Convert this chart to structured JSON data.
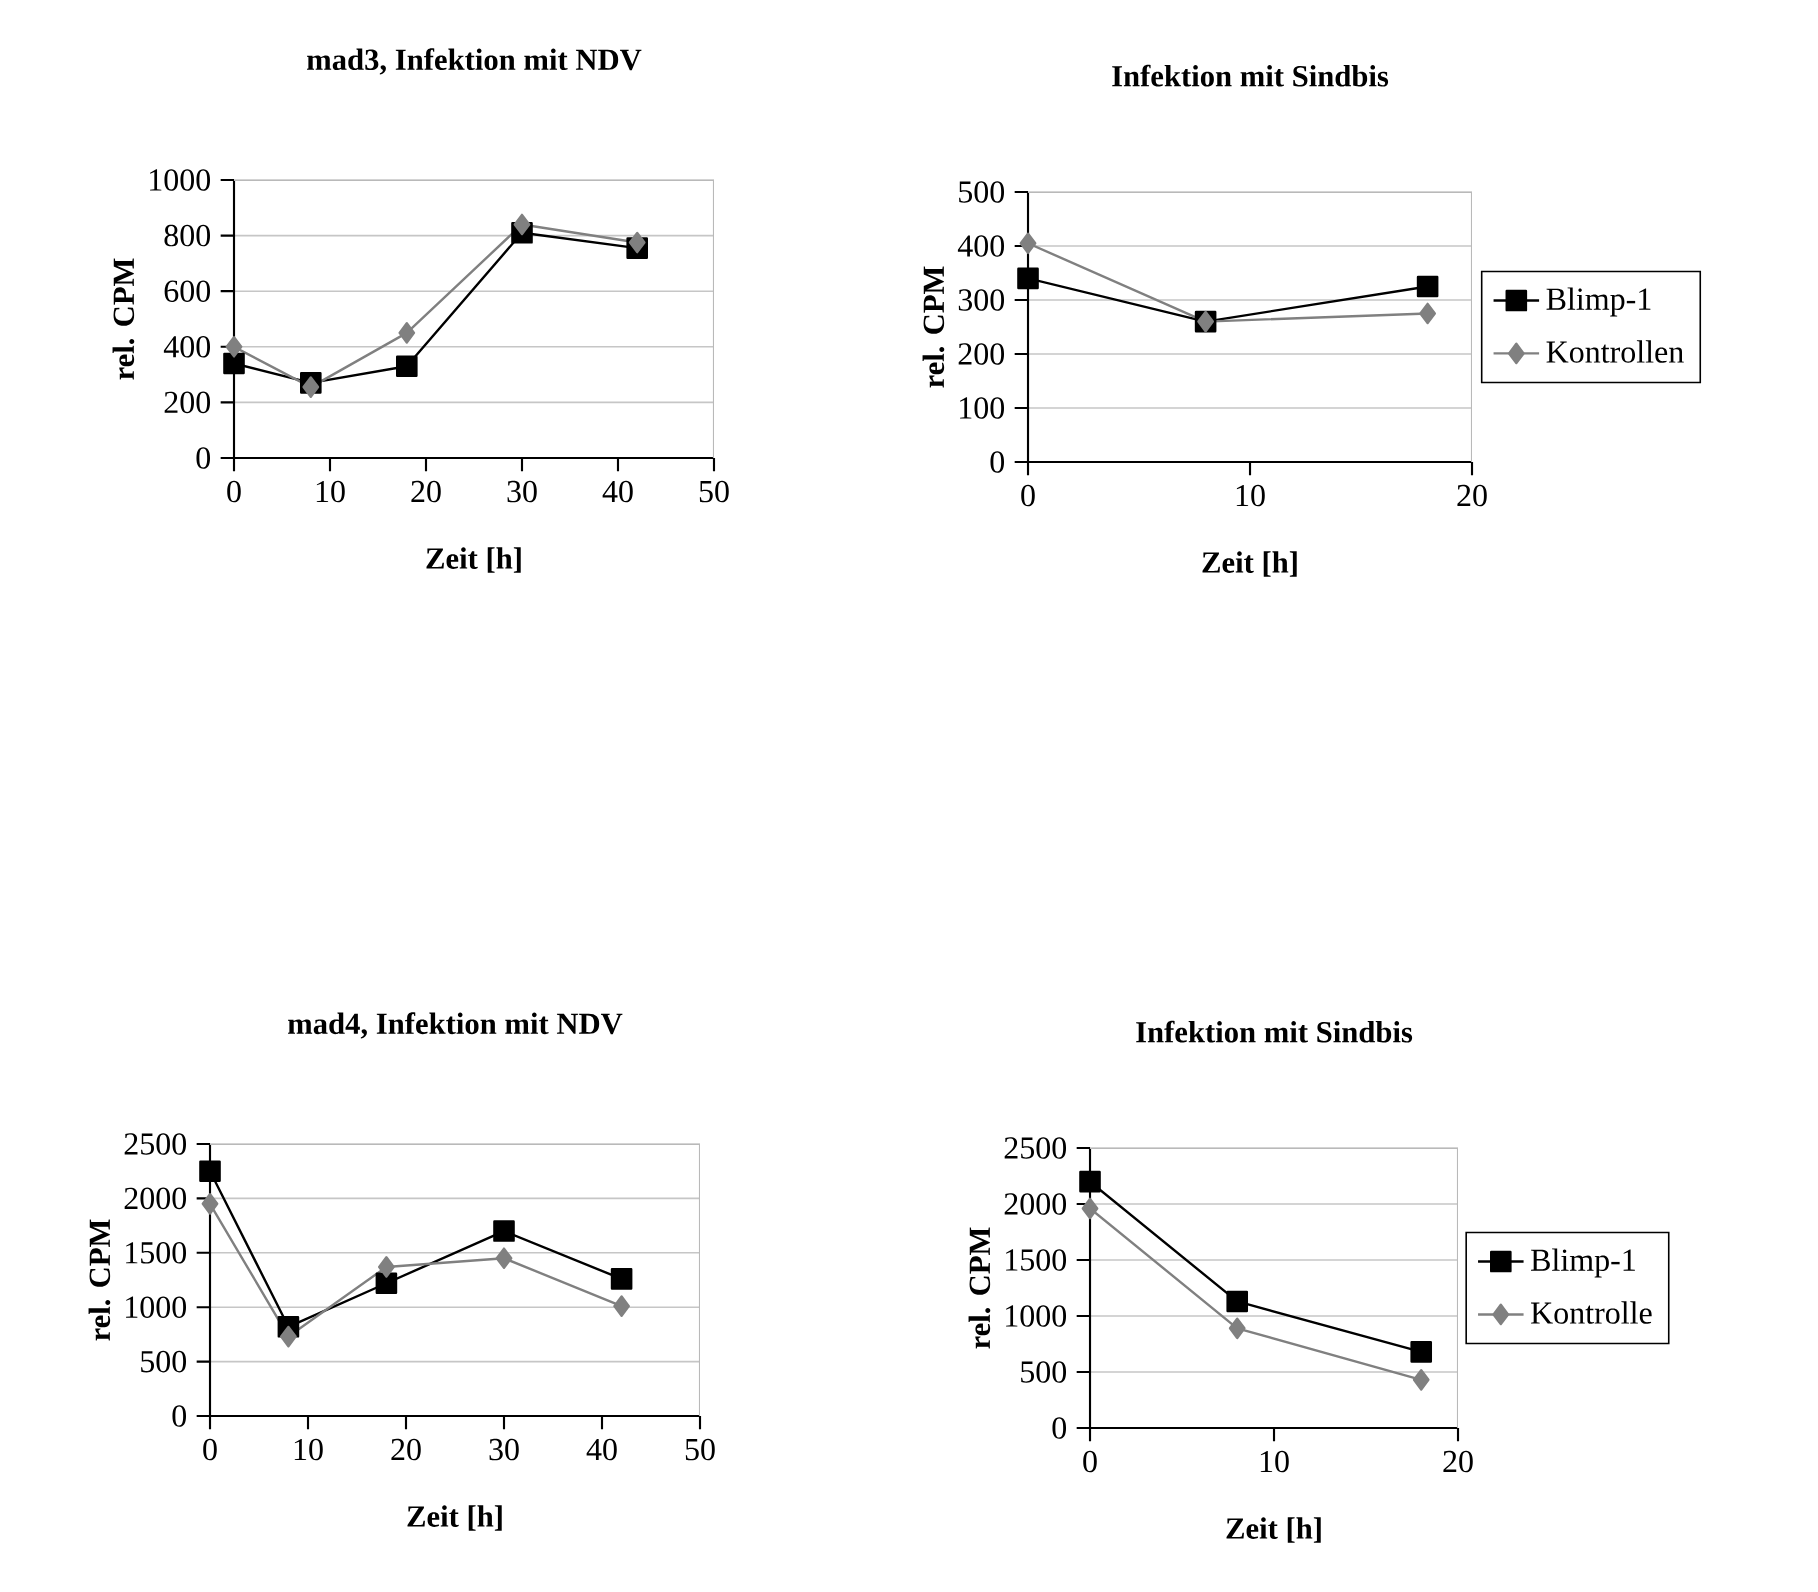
{
  "chart_data": [
    {
      "type": "line",
      "title": "mad3, Infektion mit NDV",
      "xlabel": "Zeit [h]",
      "ylabel": "rel. CPM",
      "xlim": [
        0,
        50
      ],
      "xticks": [
        0,
        10,
        20,
        30,
        40,
        50
      ],
      "ylim": [
        0,
        1000
      ],
      "yticks": [
        0,
        200,
        400,
        600,
        800,
        1000
      ],
      "grid": "y",
      "legend": false,
      "x": [
        0,
        8,
        18,
        30,
        42
      ],
      "series": [
        {
          "color": "#000000",
          "marker": "square",
          "values": [
            340,
            270,
            330,
            810,
            755
          ]
        },
        {
          "color": "#808080",
          "marker": "diamond",
          "values": [
            400,
            255,
            450,
            840,
            775
          ]
        }
      ]
    },
    {
      "type": "line",
      "title": "Infektion mit Sindbis",
      "xlabel": "Zeit [h]",
      "ylabel": "rel. CPM",
      "xlim": [
        0,
        20
      ],
      "xticks": [
        0,
        10,
        20
      ],
      "ylim": [
        0,
        500
      ],
      "yticks": [
        0,
        100,
        200,
        300,
        400,
        500
      ],
      "grid": "y",
      "legend": "right",
      "x": [
        0,
        8,
        18
      ],
      "series": [
        {
          "name": "Blimp-1",
          "color": "#000000",
          "marker": "square",
          "values": [
            340,
            260,
            325
          ]
        },
        {
          "name": "Kontrollen",
          "color": "#808080",
          "marker": "diamond",
          "values": [
            405,
            260,
            275
          ]
        }
      ]
    },
    {
      "type": "line",
      "title": "mad4, Infektion mit NDV",
      "xlabel": "Zeit [h]",
      "ylabel": "rel. CPM",
      "xlim": [
        0,
        50
      ],
      "xticks": [
        0,
        10,
        20,
        30,
        40,
        50
      ],
      "ylim": [
        0,
        2500
      ],
      "yticks": [
        0,
        500,
        1000,
        1500,
        2000,
        2500
      ],
      "grid": "y",
      "legend": false,
      "x": [
        0,
        8,
        18,
        30,
        42
      ],
      "series": [
        {
          "color": "#000000",
          "marker": "square",
          "values": [
            2250,
            820,
            1220,
            1700,
            1260
          ]
        },
        {
          "color": "#808080",
          "marker": "diamond",
          "values": [
            1950,
            730,
            1370,
            1450,
            1010
          ]
        }
      ]
    },
    {
      "type": "line",
      "title": "Infektion mit Sindbis",
      "xlabel": "Zeit [h]",
      "ylabel": "rel. CPM",
      "xlim": [
        0,
        20
      ],
      "xticks": [
        0,
        10,
        20
      ],
      "ylim": [
        0,
        2500
      ],
      "yticks": [
        0,
        500,
        1000,
        1500,
        2000,
        2500
      ],
      "grid": "y",
      "legend": "right",
      "x": [
        0,
        8,
        18
      ],
      "series": [
        {
          "name": "Blimp-1",
          "color": "#000000",
          "marker": "square",
          "values": [
            2200,
            1130,
            680
          ]
        },
        {
          "name": "Kontrolle",
          "color": "#808080",
          "marker": "diamond",
          "values": [
            1960,
            890,
            430
          ]
        }
      ]
    }
  ]
}
